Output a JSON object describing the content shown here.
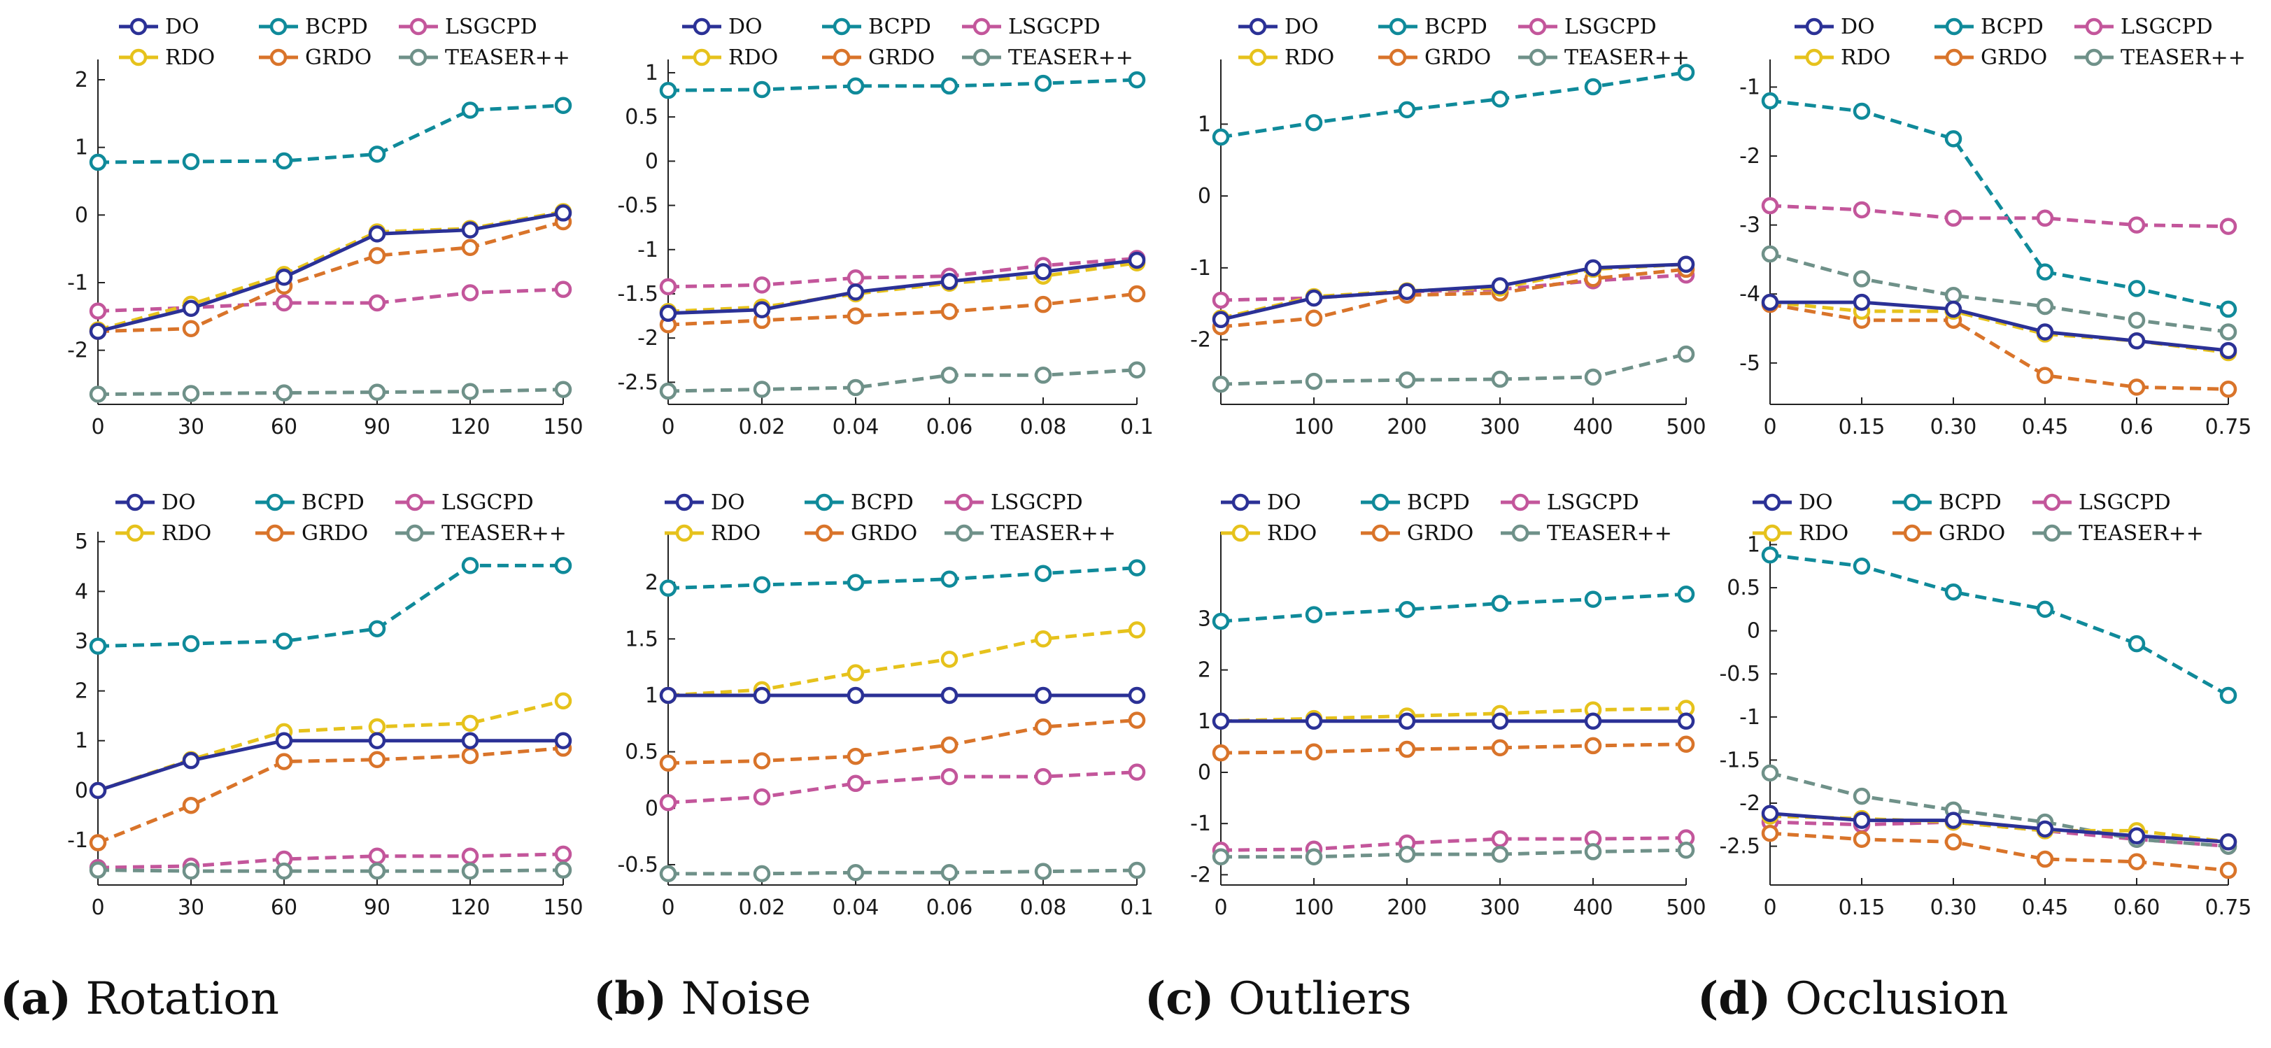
{
  "colors": {
    "DO": "#2b3196",
    "BCPD": "#0f8a9a",
    "LSGCPD": "#c3569b",
    "RDO": "#e6c21c",
    "GRDO": "#d9742a",
    "TEASER++": "#6f9189"
  },
  "captions": [
    {
      "letter": "(a)",
      "label": "Rotation"
    },
    {
      "letter": "(b)",
      "label": "Noise"
    },
    {
      "letter": "(c)",
      "label": "Outliers"
    },
    {
      "letter": "(d)",
      "label": "Occlusion"
    }
  ],
  "legend_rows": [
    [
      "DO",
      "BCPD",
      "LSGCPD"
    ],
    [
      "RDO",
      "GRDO",
      "TEASER++"
    ]
  ],
  "chart_data": [
    {
      "type": "line",
      "title": "Rotation (top)",
      "xlabel": "",
      "ylabel": "",
      "x": [
        0,
        30,
        60,
        90,
        120,
        150
      ],
      "x_ticks": [
        "0",
        "30",
        "60",
        "90",
        "120",
        "150"
      ],
      "xlim": [
        0,
        150
      ],
      "ylim": [
        -2.8,
        2.3
      ],
      "y_ticks": [
        "-2",
        "-1",
        "0",
        "1",
        "2"
      ],
      "series": [
        {
          "name": "BCPD",
          "values": [
            0.78,
            0.79,
            0.8,
            0.9,
            1.55,
            1.62
          ]
        },
        {
          "name": "LSGCPD",
          "values": [
            -1.42,
            -1.37,
            -1.3,
            -1.3,
            -1.15,
            -1.1
          ]
        },
        {
          "name": "TEASER++",
          "values": [
            -2.65,
            -2.64,
            -2.63,
            -2.62,
            -2.61,
            -2.58
          ]
        },
        {
          "name": "GRDO",
          "values": [
            -1.72,
            -1.68,
            -1.05,
            -0.6,
            -0.48,
            -0.1
          ]
        },
        {
          "name": "RDO",
          "values": [
            -1.7,
            -1.32,
            -0.88,
            -0.25,
            -0.2,
            0.05
          ]
        },
        {
          "name": "DO",
          "values": [
            -1.72,
            -1.38,
            -0.92,
            -0.28,
            -0.22,
            0.03
          ]
        }
      ]
    },
    {
      "type": "line",
      "title": "Noise (top)",
      "xlabel": "",
      "ylabel": "",
      "x": [
        0,
        0.02,
        0.04,
        0.06,
        0.08,
        0.1
      ],
      "x_ticks": [
        "0",
        "0.02",
        "0.04",
        "0.06",
        "0.08",
        "0.1"
      ],
      "xlim": [
        0,
        0.1
      ],
      "ylim": [
        -2.75,
        1.15
      ],
      "y_ticks": [
        "-2.5",
        "-2",
        "-1.5",
        "-1",
        "-0.5",
        "0",
        "0.5",
        "1"
      ],
      "series": [
        {
          "name": "BCPD",
          "values": [
            0.8,
            0.81,
            0.85,
            0.85,
            0.88,
            0.92
          ]
        },
        {
          "name": "LSGCPD",
          "values": [
            -1.42,
            -1.4,
            -1.32,
            -1.3,
            -1.18,
            -1.1
          ]
        },
        {
          "name": "TEASER++",
          "values": [
            -2.6,
            -2.58,
            -2.56,
            -2.42,
            -2.42,
            -2.36
          ]
        },
        {
          "name": "GRDO",
          "values": [
            -1.85,
            -1.8,
            -1.75,
            -1.7,
            -1.62,
            -1.5
          ]
        },
        {
          "name": "RDO",
          "values": [
            -1.7,
            -1.65,
            -1.5,
            -1.38,
            -1.3,
            -1.15
          ]
        },
        {
          "name": "DO",
          "values": [
            -1.72,
            -1.68,
            -1.48,
            -1.36,
            -1.25,
            -1.12
          ]
        }
      ]
    },
    {
      "type": "line",
      "title": "Outliers (top)",
      "xlabel": "",
      "ylabel": "",
      "x": [
        0,
        100,
        200,
        300,
        400,
        500
      ],
      "x_ticks": [
        "100",
        "200",
        "300",
        "400",
        "500"
      ],
      "xlim": [
        0,
        500
      ],
      "ylim": [
        -2.9,
        1.9
      ],
      "y_ticks": [
        "-2",
        "-1",
        "0",
        "1"
      ],
      "series": [
        {
          "name": "BCPD",
          "values": [
            0.82,
            1.02,
            1.2,
            1.35,
            1.52,
            1.72
          ]
        },
        {
          "name": "LSGCPD",
          "values": [
            -1.45,
            -1.42,
            -1.33,
            -1.3,
            -1.18,
            -1.1
          ]
        },
        {
          "name": "TEASER++",
          "values": [
            -2.62,
            -2.58,
            -2.56,
            -2.55,
            -2.52,
            -2.2
          ]
        },
        {
          "name": "GRDO",
          "values": [
            -1.82,
            -1.7,
            -1.38,
            -1.35,
            -1.15,
            -1.02
          ]
        },
        {
          "name": "RDO",
          "values": [
            -1.7,
            -1.4,
            -1.32,
            -1.28,
            -1.02,
            -0.95
          ]
        },
        {
          "name": "DO",
          "values": [
            -1.72,
            -1.42,
            -1.33,
            -1.25,
            -1.0,
            -0.95
          ]
        }
      ]
    },
    {
      "type": "line",
      "title": "Occlusion (top)",
      "xlabel": "",
      "ylabel": "",
      "x": [
        0,
        0.15,
        0.3,
        0.45,
        0.6,
        0.75
      ],
      "x_ticks": [
        "0",
        "0.15",
        "0.30",
        "0.45",
        "0.6",
        "0.75"
      ],
      "xlim": [
        0,
        0.75
      ],
      "ylim": [
        -5.6,
        -0.6
      ],
      "y_ticks": [
        "-5",
        "-4",
        "-3",
        "-2",
        "-1"
      ],
      "series": [
        {
          "name": "BCPD",
          "values": [
            -1.2,
            -1.35,
            -1.75,
            -3.68,
            -3.92,
            -4.22
          ]
        },
        {
          "name": "LSGCPD",
          "values": [
            -2.72,
            -2.78,
            -2.9,
            -2.9,
            -3.0,
            -3.02
          ]
        },
        {
          "name": "TEASER++",
          "values": [
            -3.42,
            -3.78,
            -4.02,
            -4.18,
            -4.38,
            -4.55
          ]
        },
        {
          "name": "GRDO",
          "values": [
            -4.15,
            -4.38,
            -4.38,
            -5.18,
            -5.35,
            -5.38
          ]
        },
        {
          "name": "RDO",
          "values": [
            -4.12,
            -4.25,
            -4.25,
            -4.58,
            -4.68,
            -4.85
          ]
        },
        {
          "name": "DO",
          "values": [
            -4.12,
            -4.12,
            -4.22,
            -4.55,
            -4.68,
            -4.82
          ]
        }
      ]
    },
    {
      "type": "line",
      "title": "Rotation (bottom)",
      "xlabel": "",
      "ylabel": "",
      "x": [
        0,
        30,
        60,
        90,
        120,
        150
      ],
      "x_ticks": [
        "0",
        "30",
        "60",
        "90",
        "120",
        "150"
      ],
      "xlim": [
        0,
        150
      ],
      "ylim": [
        -1.9,
        5.2
      ],
      "y_ticks": [
        "-1",
        "0",
        "1",
        "2",
        "3",
        "4",
        "5"
      ],
      "series": [
        {
          "name": "BCPD",
          "values": [
            2.9,
            2.95,
            3.0,
            3.25,
            4.52,
            4.52
          ]
        },
        {
          "name": "LSGCPD",
          "values": [
            -1.55,
            -1.52,
            -1.38,
            -1.32,
            -1.32,
            -1.28
          ]
        },
        {
          "name": "TEASER++",
          "values": [
            -1.6,
            -1.62,
            -1.62,
            -1.62,
            -1.62,
            -1.6
          ]
        },
        {
          "name": "GRDO",
          "values": [
            -1.05,
            -0.3,
            0.58,
            0.62,
            0.7,
            0.85
          ]
        },
        {
          "name": "RDO",
          "values": [
            0.0,
            0.62,
            1.18,
            1.28,
            1.35,
            1.8
          ]
        },
        {
          "name": "DO",
          "values": [
            0.0,
            0.6,
            1.0,
            1.0,
            1.0,
            1.0
          ]
        }
      ]
    },
    {
      "type": "line",
      "title": "Noise (bottom)",
      "xlabel": "",
      "ylabel": "",
      "x": [
        0,
        0.02,
        0.04,
        0.06,
        0.08,
        0.1
      ],
      "x_ticks": [
        "0",
        "0.02",
        "0.04",
        "0.06",
        "0.08",
        "0.1"
      ],
      "xlim": [
        0,
        0.1
      ],
      "ylim": [
        -0.68,
        2.45
      ],
      "y_ticks": [
        "-0.5",
        "0",
        "0.5",
        "1",
        "1.5",
        "2"
      ],
      "series": [
        {
          "name": "BCPD",
          "values": [
            1.95,
            1.98,
            2.0,
            2.03,
            2.08,
            2.13
          ]
        },
        {
          "name": "LSGCPD",
          "values": [
            0.05,
            0.1,
            0.22,
            0.28,
            0.28,
            0.32
          ]
        },
        {
          "name": "TEASER++",
          "values": [
            -0.58,
            -0.58,
            -0.57,
            -0.57,
            -0.56,
            -0.55
          ]
        },
        {
          "name": "GRDO",
          "values": [
            0.4,
            0.42,
            0.46,
            0.56,
            0.72,
            0.78
          ]
        },
        {
          "name": "RDO",
          "values": [
            1.0,
            1.05,
            1.2,
            1.32,
            1.5,
            1.58
          ]
        },
        {
          "name": "DO",
          "values": [
            1.0,
            1.0,
            1.0,
            1.0,
            1.0,
            1.0
          ]
        }
      ]
    },
    {
      "type": "line",
      "title": "Outliers (bottom)",
      "xlabel": "",
      "ylabel": "",
      "x": [
        0,
        100,
        200,
        300,
        400,
        500
      ],
      "x_ticks": [
        "0",
        "100",
        "200",
        "300",
        "400",
        "500"
      ],
      "xlim": [
        0,
        500
      ],
      "ylim": [
        -2.2,
        4.7
      ],
      "y_ticks": [
        "-2",
        "-1",
        "0",
        "1",
        "2",
        "3"
      ],
      "series": [
        {
          "name": "BCPD",
          "values": [
            2.95,
            3.08,
            3.18,
            3.3,
            3.38,
            3.48
          ]
        },
        {
          "name": "LSGCPD",
          "values": [
            -1.52,
            -1.5,
            -1.38,
            -1.3,
            -1.3,
            -1.28
          ]
        },
        {
          "name": "TEASER++",
          "values": [
            -1.65,
            -1.65,
            -1.6,
            -1.6,
            -1.55,
            -1.52
          ]
        },
        {
          "name": "GRDO",
          "values": [
            0.38,
            0.4,
            0.45,
            0.48,
            0.52,
            0.55
          ]
        },
        {
          "name": "RDO",
          "values": [
            1.0,
            1.05,
            1.1,
            1.15,
            1.22,
            1.25
          ]
        },
        {
          "name": "DO",
          "values": [
            1.0,
            1.0,
            1.0,
            1.0,
            1.0,
            1.0
          ]
        }
      ]
    },
    {
      "type": "line",
      "title": "Occlusion (bottom)",
      "xlabel": "",
      "ylabel": "",
      "x": [
        0,
        0.15,
        0.3,
        0.45,
        0.6,
        0.75
      ],
      "x_ticks": [
        "0",
        "0.15",
        "0.30",
        "0.45",
        "0.60",
        "0.75"
      ],
      "xlim": [
        0,
        0.75
      ],
      "ylim": [
        -2.95,
        1.15
      ],
      "y_ticks": [
        "-2.5",
        "-2",
        "-1.5",
        "-1",
        "-0.5",
        "0",
        "0.5",
        "1"
      ],
      "series": [
        {
          "name": "BCPD",
          "values": [
            0.88,
            0.75,
            0.45,
            0.25,
            -0.15,
            -0.75
          ]
        },
        {
          "name": "LSGCPD",
          "values": [
            -2.22,
            -2.25,
            -2.22,
            -2.32,
            -2.42,
            -2.5
          ]
        },
        {
          "name": "TEASER++",
          "values": [
            -1.65,
            -1.92,
            -2.08,
            -2.22,
            -2.42,
            -2.5
          ]
        },
        {
          "name": "GRDO",
          "values": [
            -2.35,
            -2.42,
            -2.45,
            -2.65,
            -2.68,
            -2.78
          ]
        },
        {
          "name": "RDO",
          "values": [
            -2.15,
            -2.18,
            -2.22,
            -2.32,
            -2.32,
            -2.45
          ]
        },
        {
          "name": "DO",
          "values": [
            -2.12,
            -2.2,
            -2.2,
            -2.3,
            -2.38,
            -2.45
          ]
        }
      ]
    }
  ]
}
